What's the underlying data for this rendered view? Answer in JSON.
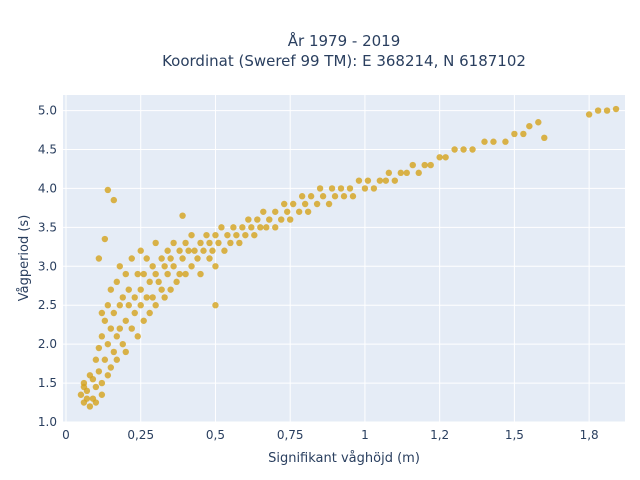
{
  "chart_data": {
    "type": "scatter",
    "title_line1": "År 1979 - 2019",
    "title_line2": "Koordinat (Sweref 99 TM): E 368214, N 6187102",
    "xlabel": "Signifikant våghöjd (m)",
    "ylabel": "Vågperiod (s)",
    "xlim": [
      -0.01,
      1.87
    ],
    "ylim": [
      1.0,
      5.2
    ],
    "grid": true,
    "legend": "none",
    "marker_color": "#d4a21c",
    "plot_bg": "#e5ecf6",
    "x_ticks": [
      {
        "value": 0,
        "label": "0"
      },
      {
        "value": 0.25,
        "label": "0,25"
      },
      {
        "value": 0.5,
        "label": "0,5"
      },
      {
        "value": 0.75,
        "label": "0,75"
      },
      {
        "value": 1.0,
        "label": "1"
      },
      {
        "value": 1.25,
        "label": "1,2"
      },
      {
        "value": 1.5,
        "label": "1,5"
      },
      {
        "value": 1.75,
        "label": "1,8"
      }
    ],
    "y_ticks": [
      {
        "value": 1.0,
        "label": "1.0"
      },
      {
        "value": 1.5,
        "label": "1.5"
      },
      {
        "value": 2.0,
        "label": "2.0"
      },
      {
        "value": 2.5,
        "label": "2.5"
      },
      {
        "value": 3.0,
        "label": "3.0"
      },
      {
        "value": 3.5,
        "label": "3.5"
      },
      {
        "value": 4.0,
        "label": "4.0"
      },
      {
        "value": 4.5,
        "label": "4.5"
      },
      {
        "value": 5.0,
        "label": "5.0"
      }
    ],
    "points": [
      [
        0.05,
        1.35
      ],
      [
        0.06,
        1.5
      ],
      [
        0.06,
        1.25
      ],
      [
        0.07,
        1.4
      ],
      [
        0.08,
        1.6
      ],
      [
        0.08,
        1.2
      ],
      [
        0.09,
        1.55
      ],
      [
        0.09,
        1.3
      ],
      [
        0.1,
        1.8
      ],
      [
        0.1,
        1.45
      ],
      [
        0.1,
        1.25
      ],
      [
        0.11,
        1.65
      ],
      [
        0.11,
        1.95
      ],
      [
        0.12,
        1.5
      ],
      [
        0.12,
        2.1
      ],
      [
        0.12,
        1.35
      ],
      [
        0.13,
        1.8
      ],
      [
        0.13,
        2.3
      ],
      [
        0.14,
        1.6
      ],
      [
        0.14,
        2.5
      ],
      [
        0.14,
        2.0
      ],
      [
        0.15,
        1.7
      ],
      [
        0.15,
        2.2
      ],
      [
        0.15,
        2.7
      ],
      [
        0.16,
        1.9
      ],
      [
        0.16,
        2.4
      ],
      [
        0.17,
        2.1
      ],
      [
        0.17,
        2.8
      ],
      [
        0.17,
        1.8
      ],
      [
        0.18,
        2.5
      ],
      [
        0.18,
        2.2
      ],
      [
        0.18,
        3.0
      ],
      [
        0.19,
        2.0
      ],
      [
        0.19,
        2.6
      ],
      [
        0.2,
        2.3
      ],
      [
        0.2,
        2.9
      ],
      [
        0.2,
        1.9
      ],
      [
        0.21,
        2.5
      ],
      [
        0.21,
        2.7
      ],
      [
        0.22,
        2.2
      ],
      [
        0.22,
        3.1
      ],
      [
        0.23,
        2.6
      ],
      [
        0.23,
        2.4
      ],
      [
        0.24,
        2.9
      ],
      [
        0.24,
        2.1
      ],
      [
        0.25,
        2.7
      ],
      [
        0.25,
        3.2
      ],
      [
        0.25,
        2.5
      ],
      [
        0.26,
        2.3
      ],
      [
        0.26,
        2.9
      ],
      [
        0.27,
        2.6
      ],
      [
        0.27,
        3.1
      ],
      [
        0.28,
        2.8
      ],
      [
        0.28,
        2.4
      ],
      [
        0.29,
        3.0
      ],
      [
        0.29,
        2.6
      ],
      [
        0.3,
        2.9
      ],
      [
        0.3,
        3.3
      ],
      [
        0.3,
        2.5
      ],
      [
        0.31,
        2.8
      ],
      [
        0.32,
        3.1
      ],
      [
        0.32,
        2.7
      ],
      [
        0.33,
        3.0
      ],
      [
        0.33,
        2.6
      ],
      [
        0.34,
        3.2
      ],
      [
        0.34,
        2.9
      ],
      [
        0.35,
        3.1
      ],
      [
        0.35,
        2.7
      ],
      [
        0.36,
        3.3
      ],
      [
        0.36,
        3.0
      ],
      [
        0.37,
        2.8
      ],
      [
        0.38,
        3.2
      ],
      [
        0.38,
        2.9
      ],
      [
        0.39,
        3.1
      ],
      [
        0.4,
        3.3
      ],
      [
        0.4,
        2.9
      ],
      [
        0.41,
        3.2
      ],
      [
        0.42,
        3.0
      ],
      [
        0.42,
        3.4
      ],
      [
        0.43,
        3.2
      ],
      [
        0.44,
        3.1
      ],
      [
        0.45,
        3.3
      ],
      [
        0.45,
        2.9
      ],
      [
        0.46,
        3.2
      ],
      [
        0.47,
        3.4
      ],
      [
        0.48,
        3.1
      ],
      [
        0.48,
        3.3
      ],
      [
        0.49,
        3.2
      ],
      [
        0.5,
        3.4
      ],
      [
        0.5,
        3.0
      ],
      [
        0.51,
        3.3
      ],
      [
        0.52,
        3.5
      ],
      [
        0.53,
        3.2
      ],
      [
        0.54,
        3.4
      ],
      [
        0.55,
        3.3
      ],
      [
        0.56,
        3.5
      ],
      [
        0.57,
        3.4
      ],
      [
        0.58,
        3.3
      ],
      [
        0.59,
        3.5
      ],
      [
        0.6,
        3.4
      ],
      [
        0.61,
        3.6
      ],
      [
        0.62,
        3.5
      ],
      [
        0.63,
        3.4
      ],
      [
        0.64,
        3.6
      ],
      [
        0.65,
        3.5
      ],
      [
        0.66,
        3.7
      ],
      [
        0.67,
        3.5
      ],
      [
        0.68,
        3.6
      ],
      [
        0.7,
        3.7
      ],
      [
        0.7,
        3.5
      ],
      [
        0.72,
        3.6
      ],
      [
        0.73,
        3.8
      ],
      [
        0.74,
        3.7
      ],
      [
        0.75,
        3.6
      ],
      [
        0.76,
        3.8
      ],
      [
        0.78,
        3.7
      ],
      [
        0.79,
        3.9
      ],
      [
        0.8,
        3.8
      ],
      [
        0.81,
        3.7
      ],
      [
        0.82,
        3.9
      ],
      [
        0.84,
        3.8
      ],
      [
        0.85,
        4.0
      ],
      [
        0.86,
        3.9
      ],
      [
        0.88,
        3.8
      ],
      [
        0.89,
        4.0
      ],
      [
        0.9,
        3.9
      ],
      [
        0.92,
        4.0
      ],
      [
        0.93,
        3.9
      ],
      [
        0.95,
        4.0
      ],
      [
        0.96,
        3.9
      ],
      [
        0.98,
        4.1
      ],
      [
        1.0,
        4.0
      ],
      [
        1.01,
        4.1
      ],
      [
        1.03,
        4.0
      ],
      [
        1.05,
        4.1
      ],
      [
        1.07,
        4.1
      ],
      [
        1.08,
        4.2
      ],
      [
        1.1,
        4.1
      ],
      [
        1.12,
        4.2
      ],
      [
        1.14,
        4.2
      ],
      [
        1.16,
        4.3
      ],
      [
        1.18,
        4.2
      ],
      [
        1.2,
        4.3
      ],
      [
        1.22,
        4.3
      ],
      [
        1.25,
        4.4
      ],
      [
        1.27,
        4.4
      ],
      [
        1.3,
        4.5
      ],
      [
        1.33,
        4.5
      ],
      [
        1.36,
        4.5
      ],
      [
        1.4,
        4.6
      ],
      [
        1.43,
        4.6
      ],
      [
        1.47,
        4.6
      ],
      [
        1.5,
        4.7
      ],
      [
        1.53,
        4.7
      ],
      [
        1.55,
        4.8
      ],
      [
        1.58,
        4.85
      ],
      [
        1.6,
        4.65
      ],
      [
        1.75,
        4.95
      ],
      [
        1.78,
        5.0
      ],
      [
        1.81,
        5.0
      ],
      [
        1.84,
        5.02
      ],
      [
        0.14,
        3.98
      ],
      [
        0.16,
        3.85
      ],
      [
        0.11,
        3.1
      ],
      [
        0.13,
        3.35
      ],
      [
        0.39,
        3.65
      ],
      [
        0.12,
        2.4
      ],
      [
        0.06,
        1.45
      ],
      [
        0.07,
        1.3
      ],
      [
        0.5,
        2.5
      ]
    ]
  }
}
